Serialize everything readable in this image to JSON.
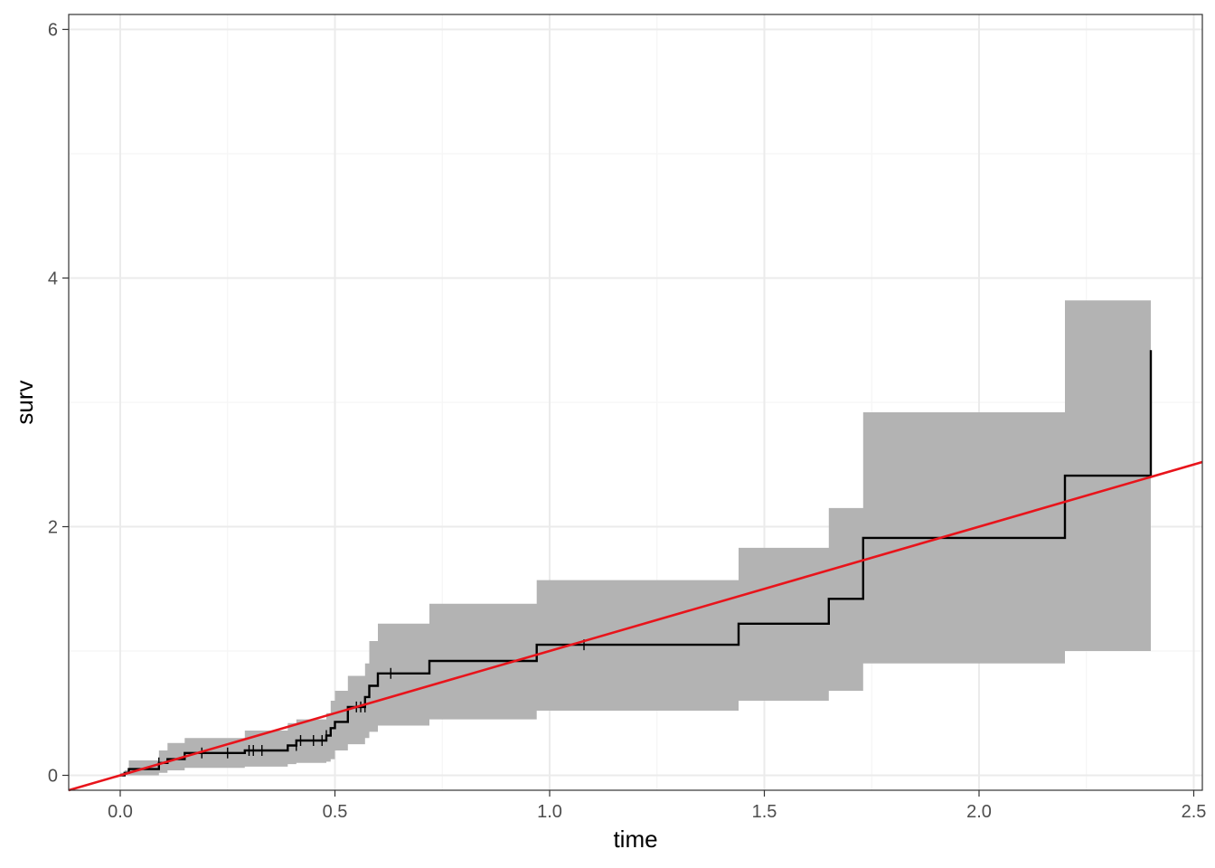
{
  "chart_data": {
    "type": "line",
    "xlabel": "time",
    "ylabel": "surv",
    "xlim": [
      -0.12,
      2.52
    ],
    "ylim": [
      -0.12,
      6.12
    ],
    "x_ticks": [
      0.0,
      0.5,
      1.0,
      1.5,
      2.0,
      2.5
    ],
    "x_tick_labels": [
      "0.0",
      "0.5",
      "1.0",
      "1.5",
      "2.0",
      "2.5"
    ],
    "y_ticks": [
      0,
      2,
      4,
      6
    ],
    "y_tick_labels": [
      "0",
      "2",
      "4",
      "6"
    ],
    "grid": true,
    "colors": {
      "step": "#000000",
      "band": "#b3b3b3",
      "reference_line": "#e8141b",
      "grid_major": "#ebebeb",
      "grid_minor": "#f5f5f5",
      "panel_border": "#333333"
    },
    "step": {
      "x": [
        0.0,
        0.01,
        0.02,
        0.09,
        0.11,
        0.15,
        0.29,
        0.39,
        0.41,
        0.48,
        0.49,
        0.5,
        0.53,
        0.57,
        0.58,
        0.6,
        0.72,
        0.97,
        1.44,
        1.65,
        1.73,
        2.2,
        2.4
      ],
      "y": [
        0.0,
        0.02,
        0.05,
        0.1,
        0.13,
        0.18,
        0.2,
        0.24,
        0.28,
        0.32,
        0.38,
        0.43,
        0.55,
        0.63,
        0.72,
        0.82,
        0.92,
        1.05,
        1.22,
        1.42,
        1.91,
        2.41,
        3.42
      ]
    },
    "ci_band": {
      "x": [
        0.0,
        0.01,
        0.02,
        0.09,
        0.11,
        0.15,
        0.29,
        0.39,
        0.41,
        0.48,
        0.49,
        0.5,
        0.53,
        0.57,
        0.58,
        0.6,
        0.72,
        0.97,
        1.44,
        1.65,
        1.73,
        2.2,
        2.4
      ],
      "lower": [
        0.0,
        0.0,
        0.0,
        0.02,
        0.04,
        0.06,
        0.07,
        0.09,
        0.1,
        0.11,
        0.13,
        0.2,
        0.25,
        0.3,
        0.35,
        0.4,
        0.45,
        0.52,
        0.6,
        0.68,
        0.9,
        1.0,
        1.0
      ],
      "upper": [
        0.02,
        0.04,
        0.12,
        0.2,
        0.26,
        0.3,
        0.36,
        0.42,
        0.45,
        0.5,
        0.6,
        0.68,
        0.8,
        0.9,
        1.08,
        1.22,
        1.38,
        1.57,
        1.83,
        2.15,
        2.92,
        3.82,
        3.82
      ]
    },
    "censor_marks": {
      "x": [
        0.09,
        0.19,
        0.25,
        0.3,
        0.31,
        0.33,
        0.41,
        0.42,
        0.45,
        0.47,
        0.48,
        0.55,
        0.56,
        0.57,
        0.63,
        1.08
      ],
      "y": [
        0.1,
        0.18,
        0.18,
        0.2,
        0.2,
        0.2,
        0.24,
        0.28,
        0.28,
        0.28,
        0.32,
        0.55,
        0.55,
        0.55,
        0.82,
        1.05
      ]
    },
    "reference_line": {
      "slope": 1,
      "intercept": 0
    }
  }
}
